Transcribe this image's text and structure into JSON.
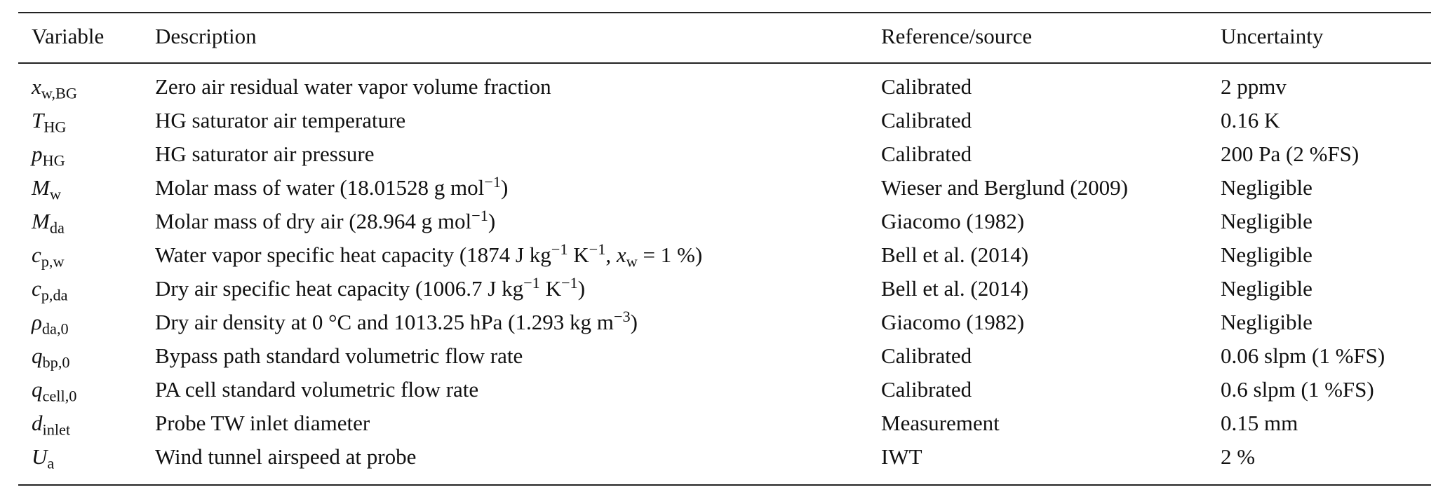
{
  "table": {
    "headers": [
      "Variable",
      "Description",
      "Reference/source",
      "Uncertainty"
    ],
    "rows": [
      {
        "symbol": "x",
        "subscript": "w,BG",
        "description": [
          [
            "Zero air residual water vapor volume fraction",
            ""
          ]
        ],
        "source": "Calibrated",
        "uncertainty": "2 ppmv"
      },
      {
        "symbol": "T",
        "subscript": "HG",
        "description": [
          [
            "HG saturator air temperature",
            ""
          ]
        ],
        "source": "Calibrated",
        "uncertainty": "0.16 K"
      },
      {
        "symbol": "p",
        "subscript": "HG",
        "description": [
          [
            "HG saturator air pressure",
            ""
          ]
        ],
        "source": "Calibrated",
        "uncertainty": "200 Pa (2 %FS)"
      },
      {
        "symbol": "M",
        "subscript": "w",
        "description": [
          [
            "Molar mass of water (18.01528 g mol",
            ""
          ],
          [
            "−1",
            "sup"
          ],
          [
            ")",
            ""
          ]
        ],
        "source": "Wieser and Berglund (2009)",
        "uncertainty": "Negligible"
      },
      {
        "symbol": "M",
        "subscript": "da",
        "description": [
          [
            "Molar mass of dry air (28.964 g mol",
            ""
          ],
          [
            "−1",
            "sup"
          ],
          [
            ")",
            ""
          ]
        ],
        "source": "Giacomo (1982)",
        "uncertainty": "Negligible"
      },
      {
        "symbol": "c",
        "subscript": "p,w",
        "description": [
          [
            "Water vapor specific heat capacity (1874 J kg",
            ""
          ],
          [
            "−1",
            "sup"
          ],
          [
            " K",
            ""
          ],
          [
            "−1",
            "sup"
          ],
          [
            ", ",
            ""
          ],
          [
            "x",
            "i"
          ],
          [
            "w",
            "sub"
          ],
          [
            " = 1 %)",
            ""
          ]
        ],
        "source": "Bell et al. (2014)",
        "uncertainty": "Negligible"
      },
      {
        "symbol": "c",
        "subscript": "p,da",
        "description": [
          [
            "Dry air specific heat capacity (1006.7 J kg",
            ""
          ],
          [
            "−1",
            "sup"
          ],
          [
            " K",
            ""
          ],
          [
            "−1",
            "sup"
          ],
          [
            ")",
            ""
          ]
        ],
        "source": "Bell et al. (2014)",
        "uncertainty": "Negligible"
      },
      {
        "symbol": "ρ",
        "subscript": "da,0",
        "description": [
          [
            "Dry air density at 0 °C and 1013.25 hPa (1.293 kg m",
            ""
          ],
          [
            "−3",
            "sup"
          ],
          [
            ")",
            ""
          ]
        ],
        "source": "Giacomo (1982)",
        "uncertainty": "Negligible"
      },
      {
        "symbol": "q",
        "subscript": "bp,0",
        "description": [
          [
            "Bypass path standard volumetric flow rate",
            ""
          ]
        ],
        "source": "Calibrated",
        "uncertainty": "0.06 slpm (1 %FS)"
      },
      {
        "symbol": "q",
        "subscript": "cell,0",
        "description": [
          [
            "PA cell standard volumetric flow rate",
            ""
          ]
        ],
        "source": "Calibrated",
        "uncertainty": "0.6 slpm (1 %FS)"
      },
      {
        "symbol": "d",
        "subscript": "inlet",
        "description": [
          [
            "Probe TW inlet diameter",
            ""
          ]
        ],
        "source": "Measurement",
        "uncertainty": "0.15 mm"
      },
      {
        "symbol": "U",
        "subscript": "a",
        "description": [
          [
            "Wind tunnel airspeed at probe",
            ""
          ]
        ],
        "source": "IWT",
        "uncertainty": "2 %"
      }
    ]
  }
}
